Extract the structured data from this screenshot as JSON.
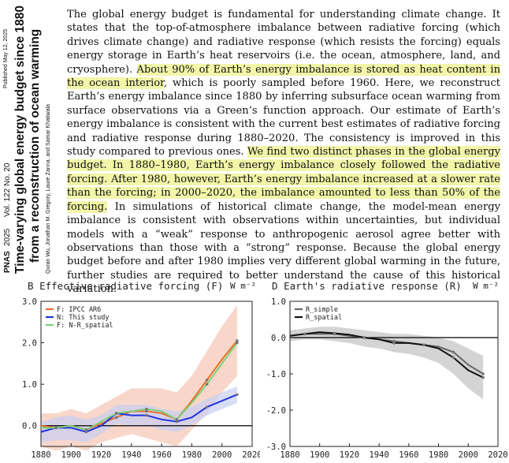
{
  "sidebar": {
    "published": "Published May 12, 2025",
    "journal": "PNAS",
    "year": "2025",
    "volume": "Vol. 122",
    "number": "No. 20",
    "title_line1": "Time-varying global energy budget since 1880",
    "title_line2": "from a reconstruction of ocean warming",
    "authors": "Quran Wu, Jonathan M. Gregory, Laure Zanna, and Samar Khatiwala"
  },
  "abstract": {
    "seg1": "The global energy budget is fundamental for understanding climate change. It states that the top-of-atmosphere imbalance between radiative forcing (which drives climate change) and radiative response (which resists the forcing) equals energy storage in Earth’s heat reservoirs (i.e. the ocean, atmosphere, land, and cryosphere). ",
    "hl1": "About 90% of Earth’s energy imbalance is stored as heat content in the ocean interior",
    "seg2": ", which is poorly sampled before 1960. Here, we reconstruct Earth’s energy imbalance since 1880 by inferring subsurface ocean warming from surface observations via a Green’s function approach. Our estimate of Earth’s energy imbalance is consistent with the current best estimates of radiative forcing and radiative response during 1880–2020. The consistency is improved in this study compared to previous ones. ",
    "hl2": "We find two distinct phases in the global energy budget. In 1880–1980, Earth’s energy imbalance closely followed the radiative forcing. After 1980, however, Earth’s energy imbalance increased at a slower rate than the forcing; in 2000–2020, the imbalance amounted to less than 50% of the forcing.",
    "seg3": " In simulations of historical climate change, the model-mean energy imbalance is consistent with observations within uncertainties, but individual models with a “weak” response to anthropogenic aerosol agree better with observations than those with a “strong” response. Because the global energy budget before and after 1980 implies very different global warming in the future, further studies are required to better understand the cause of this historical variation."
  },
  "colors": {
    "highlight": "#f3f5a8",
    "orange": "#e8702a",
    "blue": "#2233dd",
    "green": "#7ed07e",
    "pink_band": "#f6c9b8",
    "blue_band": "#c8cff2"
  },
  "chart_data": [
    {
      "type": "line",
      "panel_label": "B",
      "title": "Effective radiative forcing (F)",
      "unit": "W m⁻²",
      "x": [
        1880,
        1890,
        1900,
        1910,
        1920,
        1930,
        1940,
        1950,
        1960,
        1970,
        1980,
        1990,
        2000,
        2010
      ],
      "series": [
        {
          "name": "F: IPCC AR6",
          "color": "#e8702a",
          "values": [
            0.0,
            -0.05,
            0.0,
            -0.1,
            0.05,
            0.2,
            0.35,
            0.35,
            0.3,
            0.15,
            0.6,
            1.1,
            1.6,
            2.05
          ]
        },
        {
          "name": "N: This study",
          "color": "#2233dd",
          "values": [
            -0.15,
            -0.05,
            -0.05,
            -0.15,
            0.0,
            0.3,
            0.25,
            0.25,
            0.15,
            0.1,
            0.2,
            0.45,
            0.6,
            0.75
          ]
        },
        {
          "name": "F: N-R_spatial",
          "color": "#7ed07e",
          "values": [
            -0.05,
            -0.05,
            0.0,
            -0.1,
            0.1,
            0.3,
            0.35,
            0.4,
            0.35,
            0.15,
            0.55,
            1.0,
            1.5,
            2.0
          ]
        }
      ],
      "band_F": {
        "lower": [
          -0.5,
          -0.6,
          -0.5,
          -0.6,
          -0.4,
          -0.3,
          -0.2,
          -0.3,
          -0.4,
          -0.5,
          -0.1,
          0.3,
          0.8,
          1.2
        ],
        "upper": [
          0.3,
          0.3,
          0.4,
          0.3,
          0.5,
          0.7,
          0.9,
          0.9,
          0.9,
          0.8,
          1.2,
          1.8,
          2.4,
          2.9
        ]
      },
      "band_N": {
        "lower": [
          -0.4,
          -0.35,
          -0.35,
          -0.4,
          -0.2,
          0.05,
          0.0,
          0.0,
          -0.1,
          -0.15,
          0.0,
          0.25,
          0.4,
          0.55
        ],
        "upper": [
          0.1,
          0.2,
          0.25,
          0.15,
          0.25,
          0.5,
          0.5,
          0.5,
          0.4,
          0.35,
          0.45,
          0.65,
          0.8,
          0.95
        ]
      },
      "xlim": [
        1880,
        2020
      ],
      "ylim": [
        -0.5,
        3.0
      ],
      "xticks": [
        "1880",
        "1900",
        "1920",
        "1940",
        "1960",
        "1980",
        "2000",
        "2020"
      ],
      "yticks": [
        "3.0",
        "2.0",
        "1.0",
        "0.0"
      ]
    },
    {
      "type": "line",
      "panel_label": "D",
      "title": "Earth's radiative response (R)",
      "unit": "W m⁻²",
      "x": [
        1880,
        1890,
        1900,
        1910,
        1920,
        1930,
        1940,
        1950,
        1960,
        1970,
        1980,
        1990,
        2000,
        2010
      ],
      "series": [
        {
          "name": "R_simple",
          "color": "#666666",
          "values": [
            0.05,
            0.1,
            0.1,
            0.1,
            0.05,
            0.0,
            -0.05,
            -0.1,
            -0.15,
            -0.2,
            -0.25,
            -0.4,
            -0.75,
            -1.0
          ]
        },
        {
          "name": "R_spatial",
          "color": "#111111",
          "values": [
            0.05,
            0.1,
            0.15,
            0.12,
            0.08,
            0.0,
            -0.05,
            -0.15,
            -0.15,
            -0.2,
            -0.3,
            -0.55,
            -0.9,
            -1.1
          ]
        }
      ],
      "band": {
        "lower": [
          -0.1,
          -0.05,
          -0.05,
          -0.1,
          -0.15,
          -0.25,
          -0.3,
          -0.4,
          -0.45,
          -0.55,
          -0.7,
          -1.0,
          -1.4,
          -1.7
        ],
        "upper": [
          0.2,
          0.25,
          0.3,
          0.3,
          0.25,
          0.2,
          0.15,
          0.1,
          0.1,
          0.05,
          0.0,
          -0.1,
          -0.3,
          -0.5
        ]
      },
      "xlim": [
        1880,
        2020
      ],
      "ylim": [
        -3.0,
        1.0
      ],
      "xticks": [
        "1880",
        "1900",
        "1920",
        "1940",
        "1960",
        "1980",
        "2000",
        "2020"
      ],
      "yticks": [
        "1.0",
        "0.0",
        "-1.0",
        "-2.0",
        "-3.0"
      ]
    }
  ]
}
